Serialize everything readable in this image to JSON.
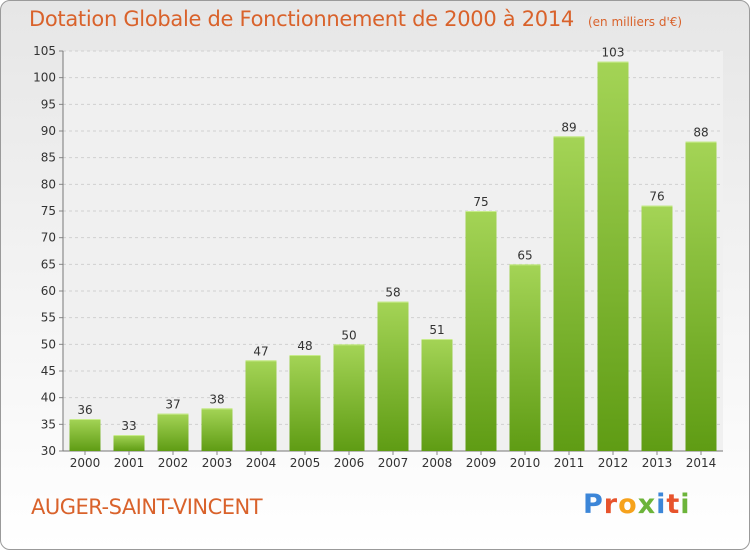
{
  "title": "Dotation Globale de Fonctionnement de 2000 à 2014",
  "subtitle": "(en milliers d'€)",
  "commune": "AUGER-SAINT-VINCENT",
  "logo": "Proxiti",
  "colors": {
    "title": "#d9622b",
    "bar_light": "#a4d456",
    "bar_dark": "#5f9c14",
    "logo": [
      "#3c86d8",
      "#e7532c",
      "#f6a21c",
      "#6cb43a",
      "#3c86d8",
      "#e7532c",
      "#6cb43a"
    ]
  },
  "chart_data": {
    "type": "bar",
    "title": "Dotation Globale de Fonctionnement de 2000 à 2014",
    "subtitle": "(en milliers d'€)",
    "categories": [
      "2000",
      "2001",
      "2002",
      "2003",
      "2004",
      "2005",
      "2006",
      "2007",
      "2008",
      "2009",
      "2010",
      "2011",
      "2012",
      "2013",
      "2014"
    ],
    "values": [
      36,
      33,
      37,
      38,
      47,
      48,
      50,
      58,
      51,
      75,
      65,
      89,
      103,
      76,
      88
    ],
    "ylim": [
      30,
      105
    ],
    "yticks": [
      30,
      35,
      40,
      45,
      50,
      55,
      60,
      65,
      70,
      75,
      80,
      85,
      90,
      95,
      100,
      105
    ],
    "grid": true,
    "data_labels": true
  }
}
